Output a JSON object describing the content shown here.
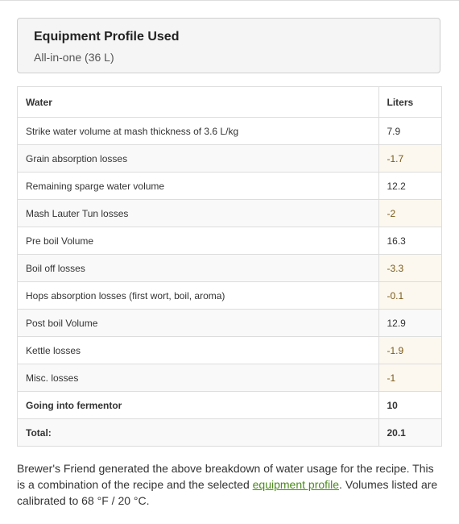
{
  "profile": {
    "title": "Equipment Profile Used",
    "value": "All-in-one (36 L)"
  },
  "table": {
    "headers": [
      "Water",
      "Liters"
    ],
    "rows": [
      {
        "label": "Strike water volume at mash thickness of 3.6 L/kg",
        "value": "7.9"
      },
      {
        "label": "Grain absorption losses",
        "value": "-1.7"
      },
      {
        "label": "Remaining sparge water volume",
        "value": "12.2"
      },
      {
        "label": "Mash Lauter Tun losses",
        "value": "-2"
      },
      {
        "label": "Pre boil Volume",
        "value": "16.3"
      },
      {
        "label": "Boil off losses",
        "value": "-3.3"
      },
      {
        "label": "Hops absorption losses (first wort, boil, aroma)",
        "value": "-0.1"
      },
      {
        "label": "Post boil Volume",
        "value": "12.9"
      },
      {
        "label": "Kettle losses",
        "value": "-1.9"
      },
      {
        "label": "Misc. losses",
        "value": "-1"
      },
      {
        "label": "Going into fermentor",
        "value": "10"
      },
      {
        "label": "Total:",
        "value": "20.1"
      }
    ]
  },
  "footer": {
    "text_before": "Brewer's Friend generated the above breakdown of water usage for the recipe. This is a combination of the recipe and the selected ",
    "link_text": "equipment profile",
    "text_after": ". Volumes listed are calibrated to 68 °F / 20 °C."
  },
  "colors": {
    "loss_highlight": "#fcf8ef",
    "link": "#4a8a1a",
    "border": "#dddddd"
  }
}
